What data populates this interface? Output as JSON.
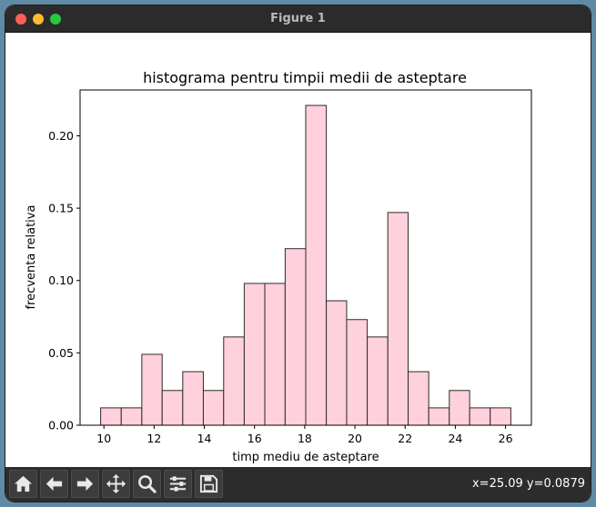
{
  "window": {
    "title": "Figure 1"
  },
  "toolbar": {
    "buttons": [
      {
        "name": "home-button",
        "icon": "home-icon"
      },
      {
        "name": "back-button",
        "icon": "arrow-left-icon"
      },
      {
        "name": "forward-button",
        "icon": "arrow-right-icon"
      },
      {
        "name": "pan-button",
        "icon": "move-icon"
      },
      {
        "name": "zoom-button",
        "icon": "magnifier-icon"
      },
      {
        "name": "configure-subplots-button",
        "icon": "sliders-icon"
      },
      {
        "name": "save-button",
        "icon": "floppy-disk-icon"
      }
    ],
    "coords": "x=25.09 y=0.0879"
  },
  "chart_data": {
    "type": "bar",
    "title": "histograma pentru timpii medii de asteptare",
    "xlabel": "timp mediu de asteptare",
    "ylabel": "frecventa relativa",
    "bin_edges": [
      9.87,
      10.69,
      11.51,
      12.32,
      13.14,
      13.96,
      14.77,
      15.59,
      16.41,
      17.22,
      18.04,
      18.86,
      19.67,
      20.49,
      21.31,
      22.12,
      22.94,
      23.76,
      24.57,
      25.39,
      26.21
    ],
    "values": [
      0.012,
      0.012,
      0.049,
      0.024,
      0.037,
      0.024,
      0.061,
      0.098,
      0.098,
      0.122,
      0.221,
      0.086,
      0.073,
      0.061,
      0.147,
      0.037,
      0.012,
      0.024,
      0.012,
      0.012
    ],
    "xlim": [
      9.05,
      27.03
    ],
    "ylim": [
      0,
      0.2317
    ],
    "xticks": [
      "10",
      "12",
      "14",
      "16",
      "18",
      "20",
      "22",
      "24",
      "26"
    ],
    "xtick_values": [
      10,
      12,
      14,
      16,
      18,
      20,
      22,
      24,
      26
    ],
    "yticks": [
      "0.00",
      "0.05",
      "0.10",
      "0.15",
      "0.20"
    ],
    "ytick_values": [
      0,
      0.05,
      0.1,
      0.15,
      0.2
    ],
    "bar_color": "#ffd1dc",
    "edge_color": "#2b2b2b",
    "grid": false
  }
}
